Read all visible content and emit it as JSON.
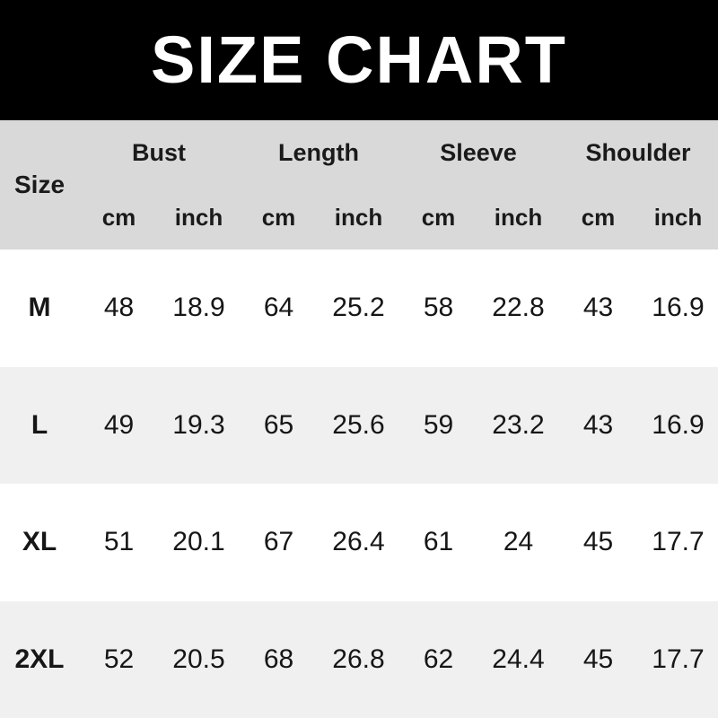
{
  "title": "SIZE CHART",
  "colors": {
    "banner_bg": "#000000",
    "banner_text": "#ffffff",
    "header_bg": "#d9d9d9",
    "row_bg": "#ffffff",
    "row_alt_bg": "#f0f0f0",
    "text": "#1a1a1a"
  },
  "table": {
    "corner_label": "Size",
    "groups": [
      "Bust",
      "Length",
      "Sleeve",
      "Shoulder"
    ],
    "units": [
      "cm",
      "inch",
      "cm",
      "inch",
      "cm",
      "inch",
      "cm",
      "inch"
    ],
    "rows": [
      {
        "size": "M",
        "values": [
          "48",
          "18.9",
          "64",
          "25.2",
          "58",
          "22.8",
          "43",
          "16.9"
        ]
      },
      {
        "size": "L",
        "values": [
          "49",
          "19.3",
          "65",
          "25.6",
          "59",
          "23.2",
          "43",
          "16.9"
        ]
      },
      {
        "size": "XL",
        "values": [
          "51",
          "20.1",
          "67",
          "26.4",
          "61",
          "24",
          "45",
          "17.7"
        ]
      },
      {
        "size": "2XL",
        "values": [
          "52",
          "20.5",
          "68",
          "26.8",
          "62",
          "24.4",
          "45",
          "17.7"
        ]
      }
    ]
  },
  "chart_data": {
    "type": "table",
    "title": "SIZE CHART",
    "columns": [
      "Size",
      "Bust cm",
      "Bust inch",
      "Length cm",
      "Length inch",
      "Sleeve cm",
      "Sleeve inch",
      "Shoulder cm",
      "Shoulder inch"
    ],
    "rows": [
      [
        "M",
        48,
        18.9,
        64,
        25.2,
        58,
        22.8,
        43,
        16.9
      ],
      [
        "L",
        49,
        19.3,
        65,
        25.6,
        59,
        23.2,
        43,
        16.9
      ],
      [
        "XL",
        51,
        20.1,
        67,
        26.4,
        61,
        24,
        45,
        17.7
      ],
      [
        "2XL",
        52,
        20.5,
        68,
        26.8,
        62,
        24.4,
        45,
        17.7
      ]
    ]
  }
}
